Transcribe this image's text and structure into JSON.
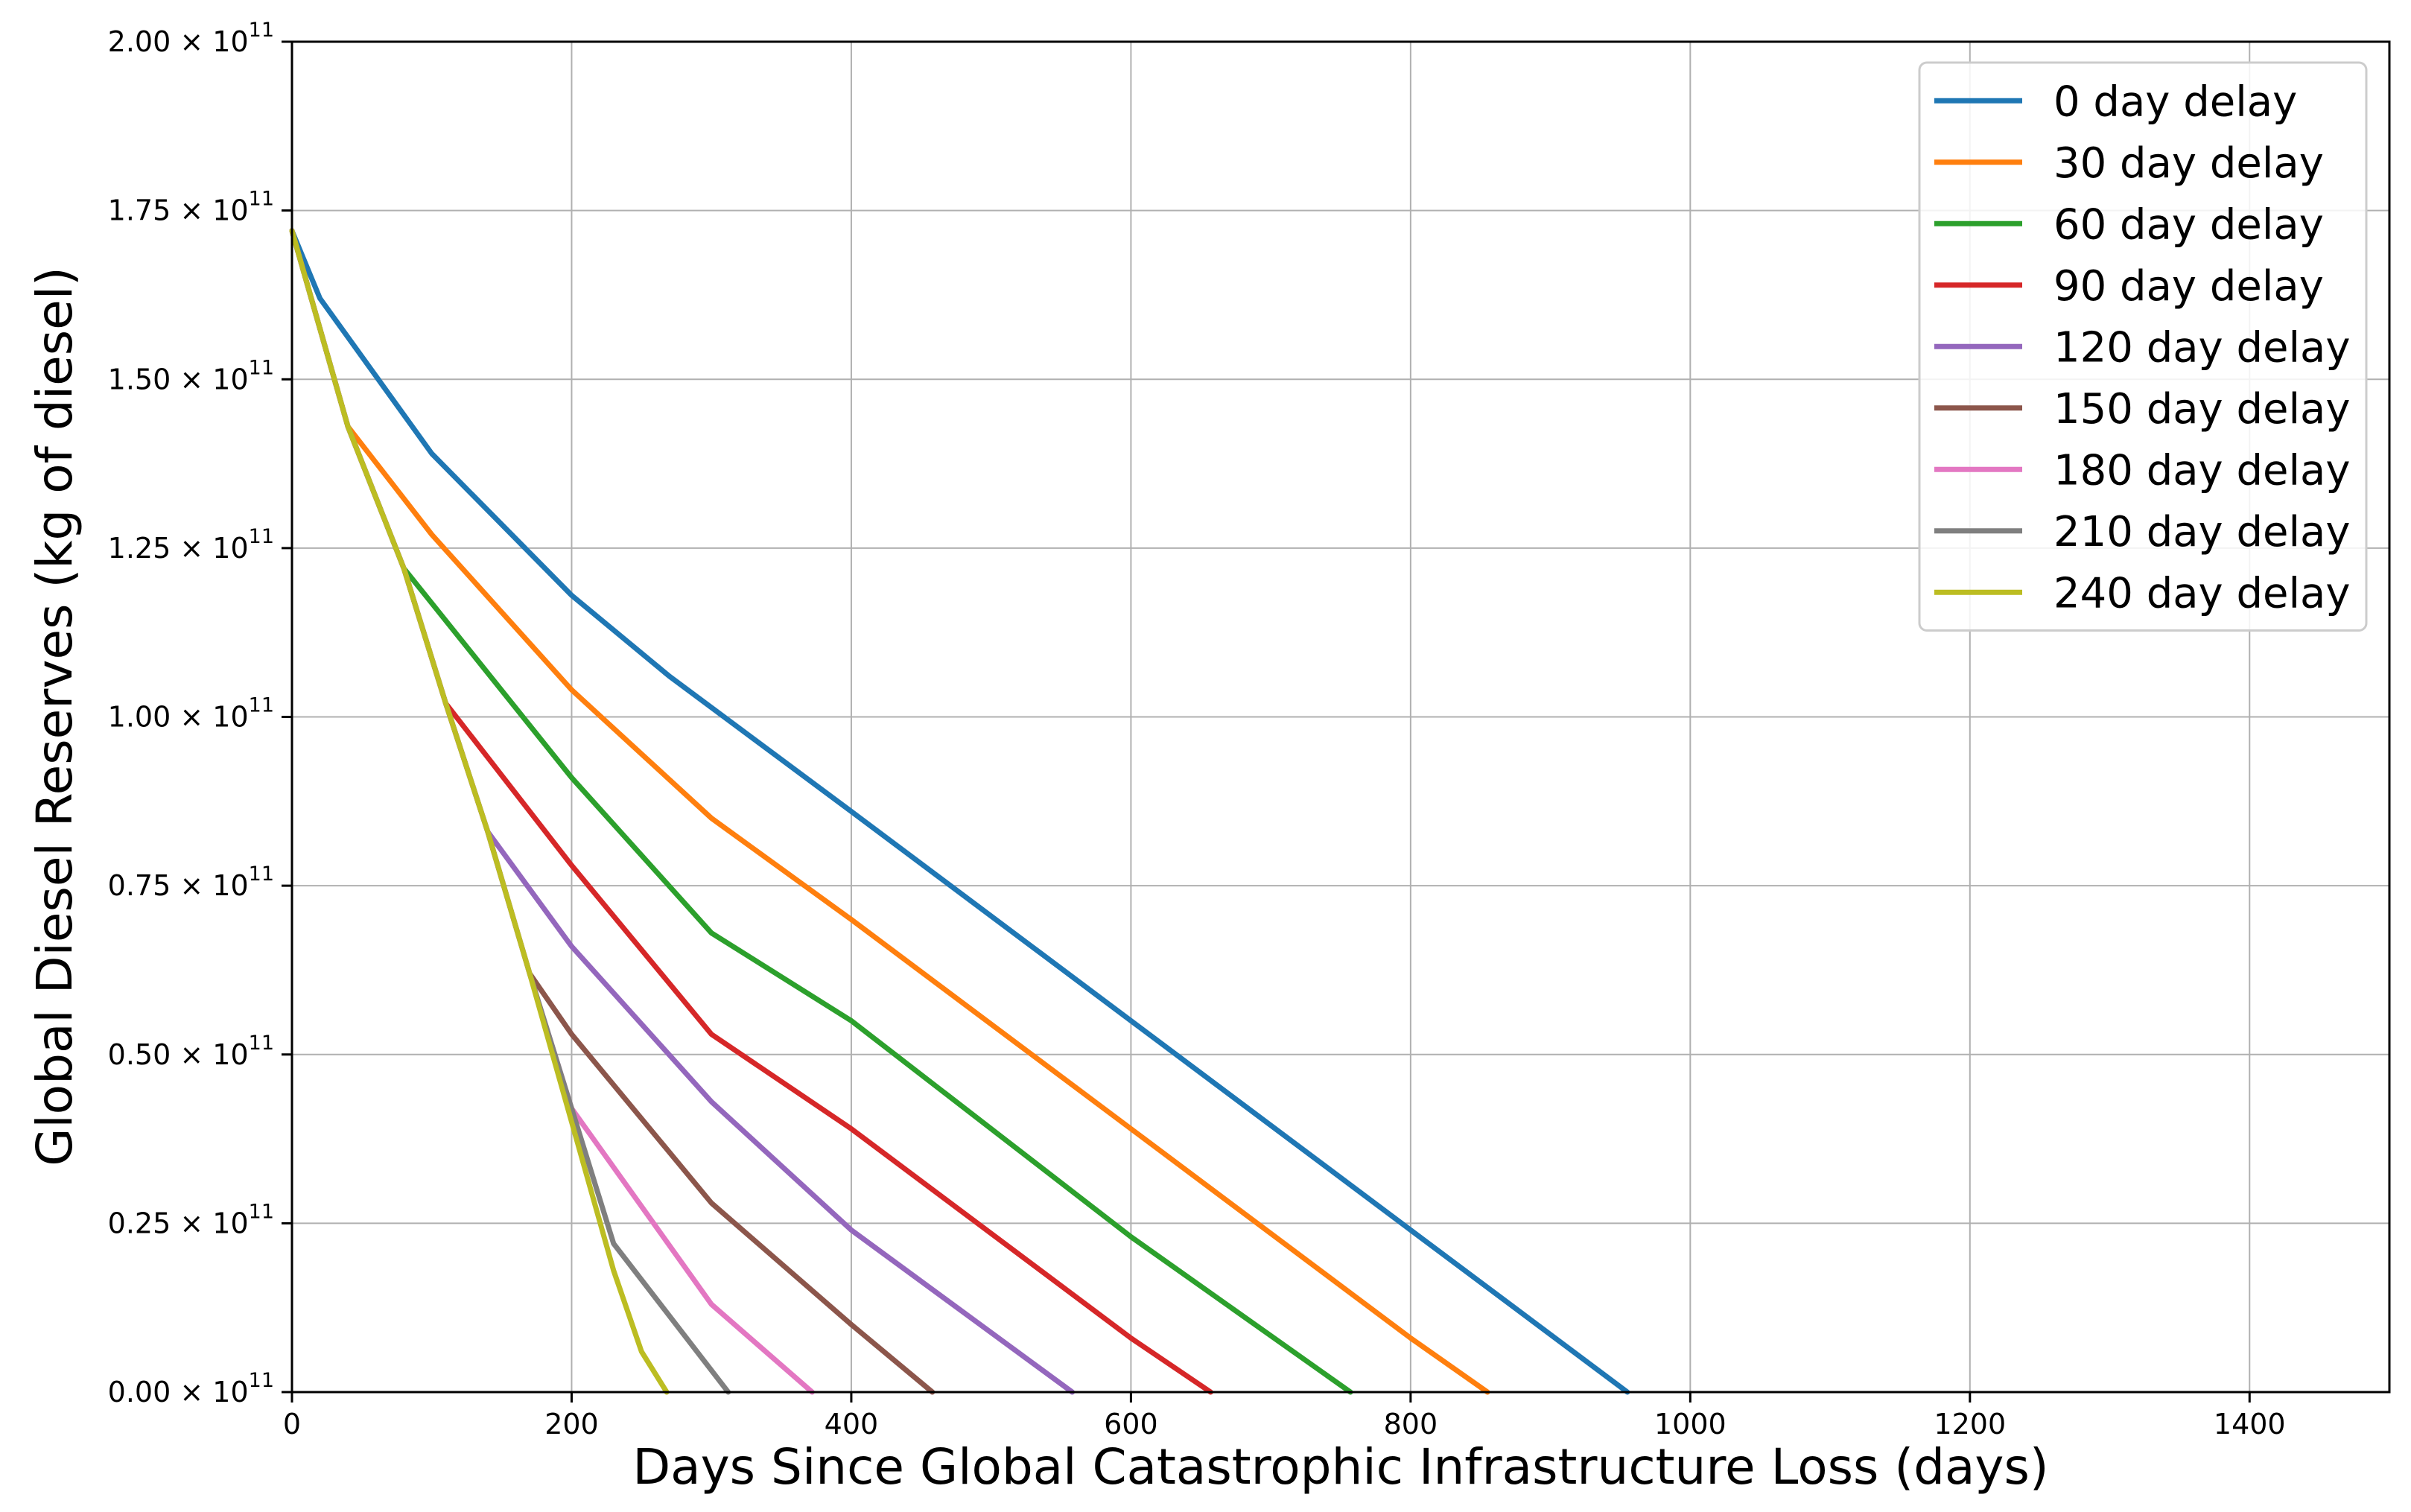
{
  "chart_data": {
    "type": "line",
    "title": "",
    "xlabel": "Days Since Global Catastrophic Infrastructure Loss (days)",
    "ylabel": "Global Diesel Reserves (kg of diesel)",
    "xlim": [
      0,
      1500
    ],
    "ylim": [
      0,
      200000000000.0
    ],
    "grid": true,
    "legend_position": "top-right",
    "x_ticks": [
      0,
      200,
      400,
      600,
      800,
      1000,
      1200,
      1400
    ],
    "x_tick_labels": [
      "0",
      "200",
      "400",
      "600",
      "800",
      "1000",
      "1200",
      "1400"
    ],
    "y_ticks": [
      0,
      25000000000.0,
      50000000000.0,
      75000000000.0,
      100000000000.0,
      125000000000.0,
      150000000000.0,
      175000000000.0,
      200000000000.0
    ],
    "y_tick_mantissas": [
      "0.00",
      "0.25",
      "0.50",
      "0.75",
      "1.00",
      "1.25",
      "1.50",
      "1.75",
      "2.00"
    ],
    "y_tick_base": "× 10",
    "y_tick_exponent": "11",
    "series": [
      {
        "name": "0 day delay",
        "color": "#1f77b4",
        "x": [
          0,
          20,
          100,
          200,
          270,
          400,
          600,
          800,
          955
        ],
        "y": [
          172000000000.0,
          162000000000.0,
          139000000000.0,
          118000000000.0,
          106000000000.0,
          86000000000.0,
          55000000000.0,
          24000000000.0,
          0
        ]
      },
      {
        "name": "30 day delay",
        "color": "#ff7f0e",
        "x": [
          0,
          40,
          100,
          200,
          300,
          400,
          600,
          800,
          855
        ],
        "y": [
          172000000000.0,
          143000000000.0,
          127000000000.0,
          104000000000.0,
          85000000000.0,
          70000000000.0,
          39000000000.0,
          8000000000.0,
          0
        ]
      },
      {
        "name": "60 day delay",
        "color": "#2ca02c",
        "x": [
          0,
          40,
          80,
          200,
          300,
          400,
          600,
          757
        ],
        "y": [
          172000000000.0,
          143000000000.0,
          122000000000.0,
          91000000000.0,
          68000000000.0,
          55000000000.0,
          23000000000.0,
          0
        ]
      },
      {
        "name": "90 day delay",
        "color": "#d62728",
        "x": [
          0,
          40,
          80,
          110,
          200,
          300,
          400,
          600,
          657
        ],
        "y": [
          172000000000.0,
          143000000000.0,
          122000000000.0,
          102000000000.0,
          78000000000.0,
          53000000000.0,
          39000000000.0,
          8000000000.0,
          0
        ]
      },
      {
        "name": "120 day delay",
        "color": "#9467bd",
        "x": [
          0,
          40,
          80,
          110,
          140,
          200,
          300,
          400,
          558
        ],
        "y": [
          172000000000.0,
          143000000000.0,
          122000000000.0,
          102000000000.0,
          83000000000.0,
          66000000000.0,
          43000000000.0,
          24000000000.0,
          0
        ]
      },
      {
        "name": "150 day delay",
        "color": "#8c564b",
        "x": [
          0,
          40,
          80,
          110,
          140,
          170,
          200,
          300,
          400,
          458
        ],
        "y": [
          172000000000.0,
          143000000000.0,
          122000000000.0,
          102000000000.0,
          83000000000.0,
          62000000000.0,
          53000000000.0,
          28000000000.0,
          10000000000.0,
          0
        ]
      },
      {
        "name": "180 day delay",
        "color": "#e377c2",
        "x": [
          0,
          40,
          80,
          110,
          140,
          170,
          200,
          300,
          372
        ],
        "y": [
          172000000000.0,
          143000000000.0,
          122000000000.0,
          102000000000.0,
          83000000000.0,
          62000000000.0,
          42000000000.0,
          13000000000.0,
          0
        ]
      },
      {
        "name": "210 day delay",
        "color": "#7f7f7f",
        "x": [
          0,
          40,
          80,
          110,
          140,
          170,
          200,
          230,
          312
        ],
        "y": [
          172000000000.0,
          143000000000.0,
          122000000000.0,
          102000000000.0,
          83000000000.0,
          62000000000.0,
          42000000000.0,
          22000000000.0,
          0
        ]
      },
      {
        "name": "240 day delay",
        "color": "#bcbd22",
        "x": [
          0,
          40,
          80,
          110,
          140,
          170,
          200,
          230,
          250,
          268
        ],
        "y": [
          172000000000.0,
          143000000000.0,
          122000000000.0,
          102000000000.0,
          83000000000.0,
          62000000000.0,
          40000000000.0,
          18000000000.0,
          6000000000.0,
          0
        ]
      }
    ]
  }
}
